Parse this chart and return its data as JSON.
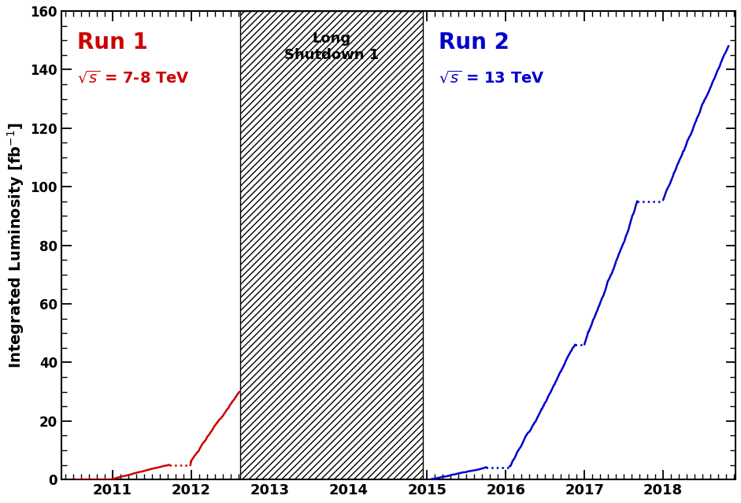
{
  "ylabel": "Integrated Luminosity [fb⁻¹]",
  "xlim": [
    2010.35,
    2018.92
  ],
  "ylim": [
    0,
    160
  ],
  "yticks": [
    0,
    20,
    40,
    60,
    80,
    100,
    120,
    140,
    160
  ],
  "xticks": [
    2011,
    2012,
    2013,
    2014,
    2015,
    2016,
    2017,
    2018
  ],
  "shutdown_x0": 2012.62,
  "shutdown_x1": 2014.95,
  "run1_label": "Run 1",
  "run1_sublabel": "$\\sqrt{s}$ = 7-8 TeV",
  "run2_label": "Run 2",
  "run2_sublabel": "$\\sqrt{s}$ = 13 TeV",
  "shutdown_label": "Long\nShutdown 1",
  "run1_color": "#cc0000",
  "run2_color": "#0000cc",
  "shutdown_text_color": "#000000",
  "bg_color": "#ffffff"
}
